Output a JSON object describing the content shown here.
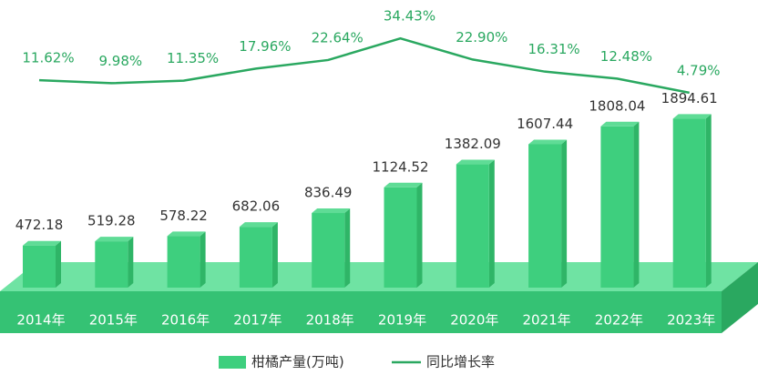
{
  "chart_data": {
    "type": "bar-line",
    "categories": [
      "2014年",
      "2015年",
      "2016年",
      "2017年",
      "2018年",
      "2019年",
      "2020年",
      "2021年",
      "2022年",
      "2023年"
    ],
    "series": [
      {
        "name": "柑橘产量(万吨)",
        "color": "#3ecf7e",
        "values": [
          472.18,
          519.28,
          578.22,
          682.06,
          836.49,
          1124.52,
          1382.09,
          1607.44,
          1808.04,
          1894.61
        ]
      },
      {
        "name": "同比增长率",
        "color": "#2aa860",
        "axis": "y2",
        "values": [
          11.62,
          9.98,
          11.35,
          17.96,
          22.64,
          34.43,
          22.9,
          16.31,
          12.48,
          4.79
        ],
        "value_labels": [
          "11.62%",
          "9.98%",
          "11.35%",
          "17.96%",
          "22.64%",
          "34.43%",
          "22.90%",
          "16.31%",
          "12.48%",
          "4.79%"
        ]
      }
    ],
    "ylim": [
      0,
      2000
    ],
    "y2lim": [
      0,
      40
    ]
  }
}
